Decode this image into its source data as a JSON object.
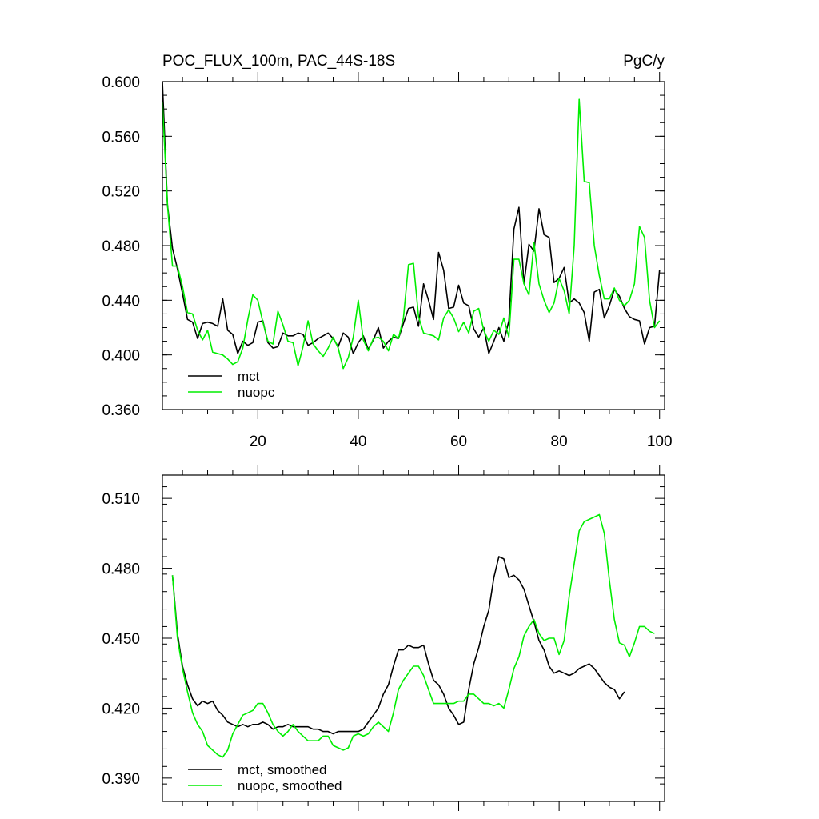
{
  "colors": {
    "mct": "#000000",
    "nuopc": "#00ee00"
  },
  "chart_data": [
    {
      "type": "line",
      "title": "POC_FLUX_100m, PAC_44S-18S",
      "units": "PgC/y",
      "xlim": [
        1,
        101
      ],
      "ylim": [
        0.36,
        0.6
      ],
      "y_ticks": [
        "0.360",
        "0.400",
        "0.440",
        "0.480",
        "0.520",
        "0.560",
        "0.600"
      ],
      "x_ticks": [
        "20",
        "40",
        "60",
        "80",
        "100"
      ],
      "legend_placement": "bottom-left",
      "series": [
        {
          "name": "mct",
          "color": "#000000",
          "x_start": 1,
          "values": [
            0.6,
            0.51,
            0.478,
            0.463,
            0.445,
            0.426,
            0.424,
            0.412,
            0.423,
            0.424,
            0.423,
            0.421,
            0.441,
            0.418,
            0.415,
            0.401,
            0.41,
            0.407,
            0.409,
            0.424,
            0.425,
            0.409,
            0.405,
            0.406,
            0.416,
            0.414,
            0.414,
            0.416,
            0.415,
            0.407,
            0.409,
            0.412,
            0.414,
            0.416,
            0.412,
            0.406,
            0.416,
            0.413,
            0.401,
            0.409,
            0.414,
            0.404,
            0.411,
            0.42,
            0.405,
            0.41,
            0.413,
            0.412,
            0.423,
            0.434,
            0.435,
            0.421,
            0.452,
            0.44,
            0.426,
            0.475,
            0.462,
            0.434,
            0.435,
            0.451,
            0.438,
            0.436,
            0.419,
            0.413,
            0.42,
            0.401,
            0.41,
            0.42,
            0.41,
            0.425,
            0.492,
            0.508,
            0.452,
            0.481,
            0.476,
            0.507,
            0.488,
            0.486,
            0.453,
            0.456,
            0.464,
            0.438,
            0.441,
            0.438,
            0.431,
            0.41,
            0.446,
            0.448,
            0.427,
            0.436,
            0.448,
            0.443,
            0.434,
            0.428,
            0.426,
            0.425,
            0.408,
            0.42,
            0.421,
            0.462
          ]
        },
        {
          "name": "nuopc",
          "color": "#00ee00",
          "x_start": 1,
          "values": [
            0.585,
            0.51,
            0.465,
            0.465,
            0.45,
            0.431,
            0.43,
            0.418,
            0.411,
            0.418,
            0.402,
            0.401,
            0.4,
            0.397,
            0.393,
            0.395,
            0.405,
            0.426,
            0.444,
            0.44,
            0.424,
            0.41,
            0.408,
            0.432,
            0.422,
            0.41,
            0.409,
            0.392,
            0.406,
            0.425,
            0.408,
            0.403,
            0.399,
            0.405,
            0.413,
            0.405,
            0.39,
            0.398,
            0.413,
            0.44,
            0.411,
            0.403,
            0.412,
            0.413,
            0.41,
            0.403,
            0.415,
            0.412,
            0.427,
            0.466,
            0.467,
            0.428,
            0.416,
            0.415,
            0.414,
            0.411,
            0.427,
            0.433,
            0.427,
            0.417,
            0.424,
            0.416,
            0.432,
            0.434,
            0.418,
            0.41,
            0.418,
            0.415,
            0.427,
            0.413,
            0.47,
            0.47,
            0.452,
            0.444,
            0.482,
            0.452,
            0.44,
            0.431,
            0.438,
            0.456,
            0.447,
            0.43,
            0.48,
            0.587,
            0.527,
            0.526,
            0.48,
            0.458,
            0.441,
            0.441,
            0.449,
            0.44,
            0.436,
            0.44,
            0.452,
            0.494,
            0.486,
            0.44,
            0.42,
            0.425
          ]
        }
      ]
    },
    {
      "type": "line",
      "title": "",
      "xlim": [
        1,
        101
      ],
      "ylim": [
        0.38,
        0.52
      ],
      "y_ticks": [
        "0.390",
        "0.420",
        "0.450",
        "0.480",
        "0.510"
      ],
      "legend_placement": "bottom-left",
      "series": [
        {
          "name": "mct, smoothed",
          "color": "#000000",
          "x_start": 3,
          "values": [
            0.477,
            0.452,
            0.438,
            0.43,
            0.424,
            0.421,
            0.423,
            0.422,
            0.423,
            0.419,
            0.417,
            0.414,
            0.413,
            0.412,
            0.413,
            0.412,
            0.413,
            0.413,
            0.414,
            0.413,
            0.411,
            0.412,
            0.412,
            0.413,
            0.412,
            0.412,
            0.412,
            0.412,
            0.411,
            0.411,
            0.41,
            0.41,
            0.409,
            0.41,
            0.41,
            0.41,
            0.41,
            0.41,
            0.411,
            0.414,
            0.417,
            0.42,
            0.426,
            0.43,
            0.438,
            0.445,
            0.445,
            0.447,
            0.446,
            0.446,
            0.447,
            0.439,
            0.432,
            0.43,
            0.426,
            0.42,
            0.417,
            0.413,
            0.414,
            0.428,
            0.439,
            0.446,
            0.455,
            0.462,
            0.476,
            0.485,
            0.484,
            0.476,
            0.477,
            0.475,
            0.471,
            0.464,
            0.457,
            0.449,
            0.445,
            0.438,
            0.435,
            0.436,
            0.435,
            0.434,
            0.435,
            0.437,
            0.438,
            0.439,
            0.437,
            0.434,
            0.431,
            0.429,
            0.428,
            0.424,
            0.427
          ]
        },
        {
          "name": "nuopc, smoothed",
          "color": "#00ee00",
          "x_start": 3,
          "values": [
            0.477,
            0.45,
            0.437,
            0.427,
            0.418,
            0.413,
            0.41,
            0.404,
            0.402,
            0.4,
            0.399,
            0.402,
            0.409,
            0.413,
            0.417,
            0.418,
            0.419,
            0.422,
            0.422,
            0.418,
            0.413,
            0.41,
            0.408,
            0.41,
            0.413,
            0.41,
            0.408,
            0.406,
            0.406,
            0.406,
            0.408,
            0.408,
            0.404,
            0.403,
            0.402,
            0.403,
            0.408,
            0.409,
            0.408,
            0.409,
            0.412,
            0.414,
            0.412,
            0.41,
            0.418,
            0.428,
            0.432,
            0.435,
            0.438,
            0.438,
            0.434,
            0.428,
            0.422,
            0.422,
            0.422,
            0.422,
            0.422,
            0.423,
            0.423,
            0.426,
            0.426,
            0.424,
            0.422,
            0.422,
            0.421,
            0.422,
            0.42,
            0.428,
            0.437,
            0.442,
            0.451,
            0.455,
            0.458,
            0.452,
            0.449,
            0.45,
            0.45,
            0.443,
            0.449,
            0.468,
            0.482,
            0.496,
            0.5,
            0.501,
            0.502,
            0.503,
            0.495,
            0.475,
            0.458,
            0.448,
            0.447,
            0.442,
            0.448,
            0.455,
            0.455,
            0.453,
            0.452
          ]
        }
      ]
    }
  ]
}
